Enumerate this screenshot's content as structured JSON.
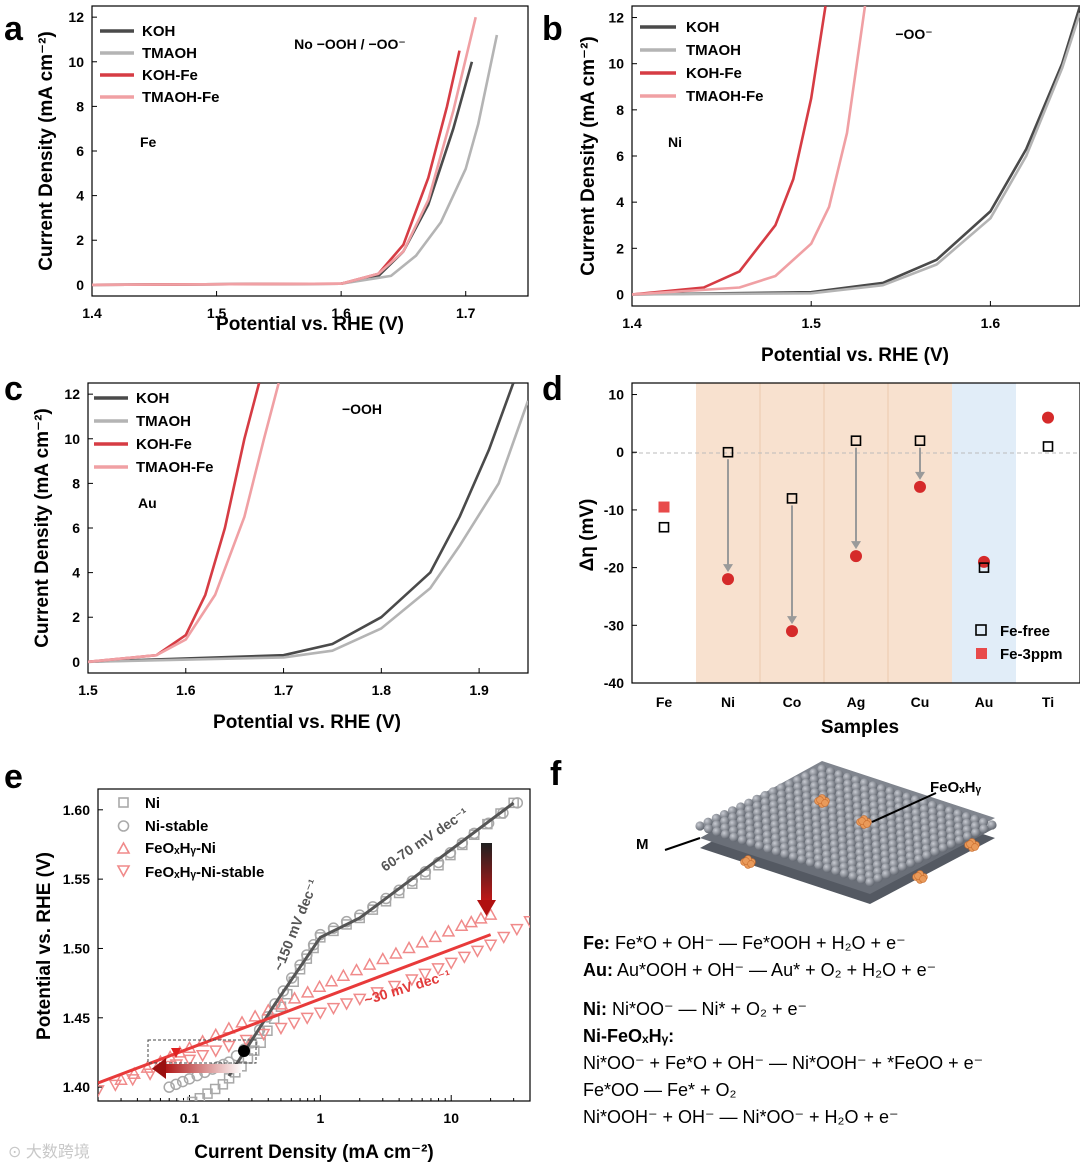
{
  "figure": {
    "panel_labels": [
      "a",
      "b",
      "c",
      "d",
      "e",
      "f"
    ],
    "watermark": "大数跨境",
    "curve_colors": {
      "KOH": "#4a4a4a",
      "TMAOH": "#b4b4b4",
      "KOH-Fe": "#d63c44",
      "TMAOH-Fe": "#f0a0a4"
    },
    "equations": {
      "fe": {
        "label": "Fe:",
        "text": "Fe*O + OH⁻ — Fe*OOH + H₂O + e⁻"
      },
      "au": {
        "label": "Au:",
        "text": "Au*OOH + OH⁻ — Au* + O₂ + H₂O + e⁻"
      },
      "ni": {
        "label": "Ni:",
        "text": "Ni*OO⁻ — Ni* + O₂ + e⁻"
      },
      "nife_title": "Ni-FeOₓHᵧ:",
      "nife_1": "Ni*OO⁻ + Fe*O + OH⁻ — Ni*OOH⁻ + *FeOO + e⁻",
      "nife_2": "Fe*OO — Fe* + O₂",
      "nife_3": "Ni*OOH⁻ + OH⁻ — Ni*OO⁻ + H₂O + e⁻"
    },
    "schematic": {
      "label_m": "M",
      "label_feoxhy": "FeOₓHᵧ"
    }
  },
  "chart_data": [
    {
      "panel": "a",
      "type": "line",
      "xlabel": "Potential vs. RHE (V)",
      "ylabel": "Current Density (mA cm⁻²)",
      "xlim": [
        1.4,
        1.75
      ],
      "ylim": [
        -0.5,
        12.5
      ],
      "xticks": [
        "1.4",
        "1.5",
        "1.6",
        "1.7"
      ],
      "yticks": [
        "0",
        "2",
        "4",
        "6",
        "8",
        "10",
        "12"
      ],
      "annotation": "No −OOH / −OO⁻",
      "metal_label": "Fe",
      "legend": "top-left",
      "series": [
        {
          "name": "KOH",
          "x": [
            1.4,
            1.6,
            1.63,
            1.65,
            1.67,
            1.69,
            1.705
          ],
          "y": [
            0,
            0.05,
            0.4,
            1.5,
            3.6,
            7.0,
            10.0
          ]
        },
        {
          "name": "TMAOH",
          "x": [
            1.4,
            1.6,
            1.64,
            1.66,
            1.68,
            1.7,
            1.71,
            1.725
          ],
          "y": [
            0,
            0.05,
            0.4,
            1.3,
            2.8,
            5.2,
            7.2,
            11.2
          ]
        },
        {
          "name": "KOH-Fe",
          "x": [
            1.4,
            1.6,
            1.63,
            1.65,
            1.67,
            1.685,
            1.695
          ],
          "y": [
            0,
            0.05,
            0.5,
            1.8,
            4.8,
            8.0,
            10.5
          ]
        },
        {
          "name": "TMAOH-Fe",
          "x": [
            1.4,
            1.6,
            1.63,
            1.65,
            1.67,
            1.69,
            1.708
          ],
          "y": [
            0,
            0.05,
            0.5,
            1.5,
            3.8,
            7.8,
            12.0
          ]
        }
      ]
    },
    {
      "panel": "b",
      "type": "line",
      "xlabel": "Potential vs. RHE (V)",
      "ylabel": "Current Density (mA cm⁻²)",
      "xlim": [
        1.4,
        1.65
      ],
      "ylim": [
        -0.5,
        12.5
      ],
      "xticks": [
        "1.4",
        "1.5",
        "1.6"
      ],
      "yticks": [
        "0",
        "2",
        "4",
        "6",
        "8",
        "10",
        "12"
      ],
      "annotation": "−OO⁻",
      "metal_label": "Ni",
      "legend": "top-left",
      "series": [
        {
          "name": "KOH",
          "x": [
            1.4,
            1.5,
            1.54,
            1.57,
            1.6,
            1.62,
            1.64,
            1.65
          ],
          "y": [
            0,
            0.1,
            0.5,
            1.5,
            3.6,
            6.3,
            10.0,
            12.5
          ]
        },
        {
          "name": "TMAOH",
          "x": [
            1.4,
            1.5,
            1.54,
            1.57,
            1.6,
            1.62,
            1.64,
            1.65
          ],
          "y": [
            0,
            0.05,
            0.4,
            1.3,
            3.3,
            6.0,
            9.8,
            12.2
          ]
        },
        {
          "name": "KOH-Fe",
          "x": [
            1.4,
            1.44,
            1.46,
            1.48,
            1.49,
            1.5,
            1.508
          ],
          "y": [
            0,
            0.3,
            1.0,
            3.0,
            5.0,
            8.5,
            12.5
          ]
        },
        {
          "name": "TMAOH-Fe",
          "x": [
            1.4,
            1.46,
            1.48,
            1.5,
            1.51,
            1.52,
            1.53
          ],
          "y": [
            0,
            0.3,
            0.8,
            2.2,
            3.8,
            7.0,
            12.5
          ]
        }
      ]
    },
    {
      "panel": "c",
      "type": "line",
      "xlabel": "Potential vs. RHE (V)",
      "ylabel": "Current Density (mA cm⁻²)",
      "xlim": [
        1.5,
        1.95
      ],
      "ylim": [
        -0.5,
        12.5
      ],
      "xticks": [
        "1.5",
        "1.6",
        "1.7",
        "1.8",
        "1.9"
      ],
      "yticks": [
        "0",
        "2",
        "4",
        "6",
        "8",
        "10",
        "12"
      ],
      "annotation": "−OOH",
      "metal_label": "Au",
      "legend": "top-left",
      "series": [
        {
          "name": "KOH",
          "x": [
            1.5,
            1.7,
            1.75,
            1.8,
            1.85,
            1.88,
            1.91,
            1.935
          ],
          "y": [
            0,
            0.3,
            0.8,
            2.0,
            4.0,
            6.5,
            9.5,
            12.5
          ]
        },
        {
          "name": "TMAOH",
          "x": [
            1.5,
            1.7,
            1.75,
            1.8,
            1.85,
            1.88,
            1.92,
            1.95
          ],
          "y": [
            0,
            0.2,
            0.5,
            1.5,
            3.3,
            5.2,
            8.0,
            11.7
          ]
        },
        {
          "name": "KOH-Fe",
          "x": [
            1.5,
            1.57,
            1.6,
            1.62,
            1.64,
            1.66,
            1.675
          ],
          "y": [
            0,
            0.3,
            1.2,
            3.0,
            6.0,
            10.0,
            12.5
          ]
        },
        {
          "name": "TMAOH-Fe",
          "x": [
            1.5,
            1.57,
            1.6,
            1.63,
            1.66,
            1.68,
            1.695
          ],
          "y": [
            0,
            0.3,
            1.0,
            3.0,
            6.5,
            10.0,
            12.5
          ]
        }
      ]
    },
    {
      "panel": "d",
      "type": "scatter",
      "xlabel": "Samples",
      "ylabel": "Δη (mV)",
      "categories": [
        "Fe",
        "Ni",
        "Co",
        "Ag",
        "Cu",
        "Au",
        "Ti"
      ],
      "ylim": [
        -40,
        12
      ],
      "yticks": [
        "10",
        "0",
        "-10",
        "-20",
        "-30",
        "-40"
      ],
      "legend": "bottom-right",
      "shading": {
        "orange": [
          "Ni",
          "Cu"
        ],
        "blue": [
          "Au"
        ]
      },
      "series": [
        {
          "name": "Fe-free",
          "values": [
            -13,
            0,
            -8,
            2,
            2,
            -20,
            1
          ]
        },
        {
          "name": "Fe-3ppm",
          "values": [
            -9.5,
            -22,
            -31,
            -18,
            -6,
            -19,
            6
          ]
        }
      ]
    },
    {
      "panel": "e",
      "type": "scatter",
      "xlabel": "Current Density (mA cm⁻²)",
      "ylabel": "Potential vs. RHE (V)",
      "xscale": "log",
      "xlim": [
        0.02,
        40
      ],
      "ylim": [
        1.39,
        1.615
      ],
      "xticks": [
        "0.1",
        "1",
        "10"
      ],
      "yticks": [
        "1.40",
        "1.45",
        "1.50",
        "1.55",
        "1.60"
      ],
      "legend": "top-left",
      "annotations": {
        "steep": "~150 mV dec⁻¹",
        "mid": "60-70 mV dec⁻¹",
        "fe": "~30 mV dec⁻¹"
      },
      "series": [
        {
          "name": "Ni",
          "x": [
            0.08,
            0.12,
            0.18,
            0.25,
            0.35,
            0.5,
            0.7,
            1.0,
            2,
            4,
            8,
            15,
            30
          ],
          "y": [
            1.384,
            1.392,
            1.402,
            1.415,
            1.432,
            1.458,
            1.485,
            1.508,
            1.522,
            1.54,
            1.56,
            1.582,
            1.605
          ]
        },
        {
          "name": "Ni-stable",
          "x": [
            0.07,
            0.1,
            0.15,
            0.2,
            0.3,
            0.45,
            0.7,
            1.0,
            2,
            4,
            8,
            15,
            32
          ],
          "y": [
            1.4,
            1.406,
            1.413,
            1.418,
            1.432,
            1.46,
            1.488,
            1.51,
            1.524,
            1.542,
            1.562,
            1.583,
            1.605
          ]
        },
        {
          "name": "FeOₓHᵧ-Ni",
          "x": [
            0.03,
            0.06,
            0.1,
            0.2,
            0.4,
            0.8,
            1.5,
            3,
            6,
            12,
            20
          ],
          "y": [
            1.405,
            1.418,
            1.428,
            1.442,
            1.455,
            1.468,
            1.48,
            1.492,
            1.504,
            1.516,
            1.524
          ]
        },
        {
          "name": "FeOₓHᵧ-Ni-stable",
          "x": [
            0.02,
            0.05,
            0.1,
            0.2,
            0.5,
            1,
            2,
            5,
            10,
            20,
            40
          ],
          "y": [
            1.398,
            1.41,
            1.42,
            1.43,
            1.443,
            1.454,
            1.464,
            1.478,
            1.49,
            1.503,
            1.52
          ]
        }
      ]
    }
  ]
}
